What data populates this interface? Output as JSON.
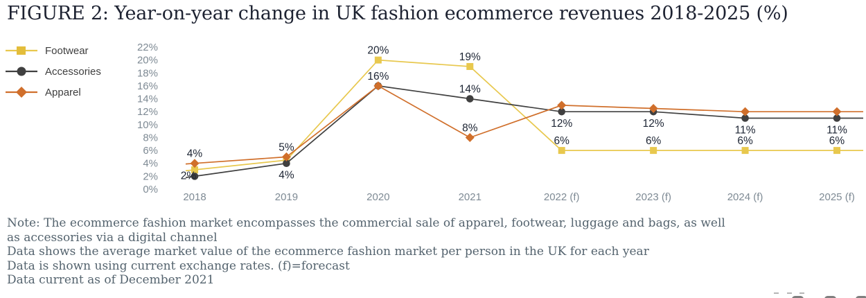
{
  "title": "FIGURE 2: Year-on-year change in UK fashion ecommerce revenues 2018-2025 (%)",
  "legend": {
    "items": [
      {
        "label": "Footwear",
        "marker": "square",
        "color": "#e8c84e"
      },
      {
        "label": "Accessories",
        "marker": "circle",
        "color": "#404040"
      },
      {
        "label": "Apparel",
        "marker": "diamond",
        "color": "#d06f2b"
      }
    ]
  },
  "chart_data": {
    "type": "line",
    "title": "FIGURE 2: Year-on-year change in UK fashion ecommerce revenues 2018-2025 (%)",
    "categories": [
      "2018",
      "2019",
      "2020",
      "2021",
      "2022 (f)",
      "2023 (f)",
      "2024 (f)",
      "2025 (f)"
    ],
    "series": [
      {
        "name": "Footwear",
        "color": "#e8c84e",
        "marker": "square",
        "values": [
          3,
          4.5,
          20,
          19,
          6,
          6,
          6,
          6
        ],
        "point_labels": [
          null,
          null,
          "20%",
          "19%",
          "6%",
          "6%",
          "6%",
          "6%"
        ],
        "label_positions": [
          null,
          null,
          "above",
          "above",
          "above",
          "above",
          "above",
          "above"
        ]
      },
      {
        "name": "Accessories",
        "color": "#404040",
        "marker": "circle",
        "values": [
          2,
          4,
          16,
          14,
          12,
          12,
          11,
          11
        ],
        "point_labels": [
          "2%",
          "4%",
          "16%",
          "14%",
          "12%",
          "12%",
          "11%",
          "11%"
        ],
        "label_positions": [
          "left",
          "below",
          "above",
          "above",
          "below",
          "below",
          "below",
          "below"
        ]
      },
      {
        "name": "Apparel",
        "color": "#d06f2b",
        "marker": "diamond",
        "values": [
          4,
          5,
          16,
          8,
          13,
          12.5,
          12,
          12
        ],
        "point_labels": [
          "4%",
          "5%",
          null,
          "8%",
          null,
          null,
          null,
          null
        ],
        "label_positions": [
          "above",
          "above",
          null,
          "above",
          null,
          null,
          null,
          null
        ]
      }
    ],
    "xlabel": "",
    "ylabel": "",
    "ylim": [
      0,
      22
    ],
    "ytick_step": 2,
    "yticks": [
      "22%",
      "20%",
      "18%",
      "16%",
      "14%",
      "12%",
      "10%",
      "8%",
      "6%",
      "4%",
      "2%",
      "0%"
    ],
    "grid": false,
    "legend_position": "left"
  },
  "notes": {
    "lines": [
      "Note: The ecommerce fashion market encompasses the commercial sale of apparel, footwear, luggage and bags, as well",
      "as accessories via a digital channel",
      "Data shows the average market value of the ecommerce fashion market per person in the UK for each year",
      "Data is shown using current exchange rates. (f)=forecast",
      "Data current as of December 2021"
    ]
  },
  "colors": {
    "title": "#1d2231",
    "note_text": "#54636e",
    "axis_labels": "#7e8a94",
    "data_labels": "#1c2433",
    "footwear": "#e8c84e",
    "accessories": "#404040",
    "apparel": "#d06f2b"
  }
}
